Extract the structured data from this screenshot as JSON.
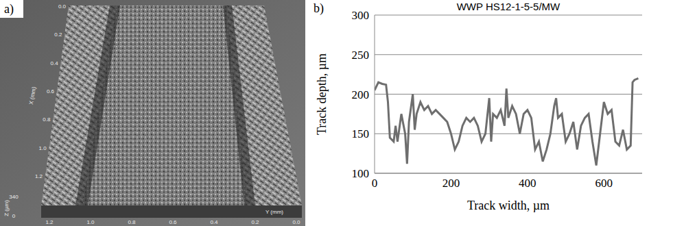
{
  "panel_a": {
    "panel_label": "a)",
    "x_axis_title": "X (mm)",
    "x_ticks": [
      "0.0",
      "0.2",
      "0.4",
      "0.6",
      "0.8",
      "1.0",
      "1.2"
    ],
    "y_axis_title": "Y (mm)",
    "y_ticks": [
      "1.2",
      "1.0",
      "0.8",
      "0.6",
      "0.4",
      "0.2",
      "0.0"
    ],
    "z_axis_title": "Z (µm)",
    "z_ticks": [
      "340",
      "0"
    ]
  },
  "chart_data": {
    "type": "line",
    "panel_label": "b)",
    "title": "WWP HS12-1-5-5/MW",
    "x_label": "Track width, µm",
    "y_label": "Track depth, µm",
    "x": [
      0,
      5,
      10,
      20,
      30,
      35,
      40,
      50,
      55,
      60,
      70,
      80,
      85,
      90,
      100,
      105,
      110,
      120,
      130,
      140,
      150,
      160,
      170,
      180,
      190,
      200,
      210,
      220,
      230,
      240,
      250,
      260,
      270,
      280,
      290,
      300,
      305,
      310,
      320,
      330,
      340,
      345,
      350,
      360,
      370,
      380,
      390,
      400,
      410,
      420,
      430,
      440,
      450,
      460,
      470,
      475,
      480,
      490,
      500,
      510,
      520,
      530,
      540,
      550,
      560,
      570,
      580,
      590,
      600,
      610,
      620,
      630,
      640,
      650,
      660,
      670,
      675,
      680,
      690
    ],
    "values": [
      205,
      210,
      215,
      213,
      212,
      190,
      145,
      140,
      160,
      140,
      175,
      150,
      112,
      165,
      200,
      155,
      175,
      190,
      180,
      185,
      175,
      180,
      175,
      170,
      165,
      150,
      130,
      140,
      160,
      170,
      165,
      170,
      160,
      140,
      150,
      195,
      140,
      175,
      170,
      180,
      160,
      207,
      170,
      185,
      175,
      150,
      175,
      180,
      170,
      130,
      140,
      115,
      130,
      150,
      185,
      195,
      170,
      175,
      140,
      150,
      165,
      130,
      160,
      170,
      175,
      140,
      110,
      150,
      190,
      175,
      180,
      140,
      135,
      155,
      130,
      135,
      215,
      218,
      220
    ],
    "color": "#6e6e6e",
    "xlim": [
      0,
      700
    ],
    "xticks": [
      0,
      200,
      400,
      600
    ],
    "ylim": [
      100,
      300
    ],
    "yticks": [
      100,
      150,
      200,
      250,
      300
    ],
    "grid": true
  }
}
